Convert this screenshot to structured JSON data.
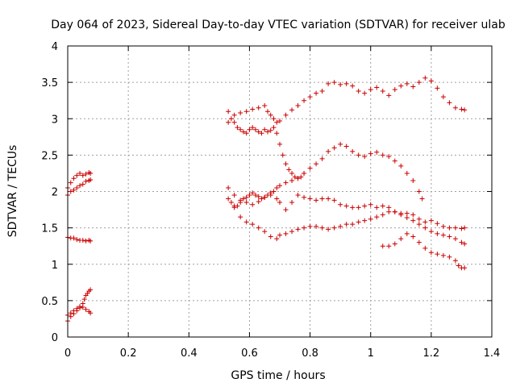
{
  "chart_data": {
    "type": "scatter",
    "title": "Day 064 of 2023, Sidereal Day-to-day VTEC variation (SDTVAR) for receiver ulab",
    "xlabel": "GPS time / hours",
    "ylabel": "SDTVAR / TECUs",
    "xlim": [
      0,
      1.4
    ],
    "ylim": [
      0,
      4
    ],
    "xticks": [
      "0",
      "0.2",
      "0.4",
      "0.6",
      "0.8",
      "1",
      "1.2",
      "1.4"
    ],
    "yticks": [
      "0",
      "0.5",
      "1",
      "1.5",
      "2",
      "2.5",
      "3",
      "3.5",
      "4"
    ],
    "grid": true,
    "marker": "+",
    "color": "#cc0000",
    "series": [
      {
        "name": "s1",
        "x": [
          0.0,
          0.01,
          0.02,
          0.03,
          0.04,
          0.05,
          0.06,
          0.07,
          0.075
        ],
        "y": [
          2.05,
          2.12,
          2.18,
          2.22,
          2.25,
          2.22,
          2.24,
          2.26,
          2.25
        ]
      },
      {
        "name": "s2",
        "x": [
          0.0,
          0.01,
          0.02,
          0.03,
          0.04,
          0.05,
          0.06,
          0.07,
          0.075
        ],
        "y": [
          1.95,
          2.0,
          2.02,
          2.05,
          2.08,
          2.1,
          2.14,
          2.15,
          2.16
        ]
      },
      {
        "name": "s3",
        "x": [
          0.0,
          0.01,
          0.02,
          0.03,
          0.04,
          0.05,
          0.06,
          0.07,
          0.075
        ],
        "y": [
          1.37,
          1.36,
          1.36,
          1.34,
          1.33,
          1.33,
          1.32,
          1.33,
          1.32
        ]
      },
      {
        "name": "s4",
        "x": [
          0.0,
          0.01,
          0.02,
          0.03,
          0.04,
          0.05,
          0.055,
          0.06,
          0.065,
          0.07,
          0.075
        ],
        "y": [
          0.22,
          0.28,
          0.32,
          0.36,
          0.4,
          0.46,
          0.52,
          0.57,
          0.6,
          0.63,
          0.65
        ]
      },
      {
        "name": "s5",
        "x": [
          0.0,
          0.01,
          0.02,
          0.03,
          0.04,
          0.05,
          0.06,
          0.07,
          0.075
        ],
        "y": [
          0.3,
          0.33,
          0.36,
          0.39,
          0.42,
          0.41,
          0.38,
          0.35,
          0.33
        ]
      },
      {
        "name": "s6",
        "x": [
          0.53,
          0.55,
          0.57,
          0.59,
          0.61,
          0.63,
          0.65,
          0.66,
          0.67,
          0.68,
          0.69,
          0.7,
          0.72,
          0.74,
          0.76,
          0.78,
          0.8,
          0.82,
          0.84,
          0.86,
          0.88,
          0.9,
          0.92,
          0.94,
          0.96,
          0.98,
          1.0,
          1.02,
          1.04,
          1.06,
          1.08,
          1.1,
          1.12,
          1.14,
          1.16,
          1.18,
          1.2,
          1.22,
          1.24,
          1.26,
          1.28,
          1.3,
          1.31
        ],
        "y": [
          3.1,
          3.05,
          3.08,
          3.1,
          3.13,
          3.15,
          3.18,
          3.1,
          3.05,
          3.0,
          2.95,
          2.97,
          3.05,
          3.12,
          3.18,
          3.25,
          3.3,
          3.35,
          3.38,
          3.48,
          3.5,
          3.47,
          3.48,
          3.45,
          3.38,
          3.35,
          3.4,
          3.43,
          3.38,
          3.32,
          3.4,
          3.45,
          3.48,
          3.44,
          3.5,
          3.56,
          3.52,
          3.42,
          3.3,
          3.22,
          3.15,
          3.13,
          3.12
        ]
      },
      {
        "name": "s7",
        "x": [
          0.53,
          0.54,
          0.55,
          0.56,
          0.57,
          0.58,
          0.59,
          0.6,
          0.61,
          0.62,
          0.63,
          0.64,
          0.65,
          0.66,
          0.67,
          0.68,
          0.69,
          0.7,
          0.71,
          0.72,
          0.73,
          0.74,
          0.75,
          0.76,
          0.77,
          0.78
        ],
        "y": [
          2.95,
          3.0,
          2.95,
          2.88,
          2.85,
          2.82,
          2.8,
          2.85,
          2.88,
          2.85,
          2.82,
          2.8,
          2.85,
          2.82,
          2.84,
          2.88,
          2.8,
          2.65,
          2.5,
          2.38,
          2.3,
          2.25,
          2.2,
          2.18,
          2.2,
          2.25
        ]
      },
      {
        "name": "s8",
        "x": [
          0.53,
          0.54,
          0.55,
          0.56,
          0.57,
          0.58,
          0.59,
          0.6,
          0.61,
          0.62,
          0.63,
          0.64,
          0.65,
          0.66,
          0.67,
          0.68,
          0.69,
          0.7,
          0.72,
          0.74,
          0.76,
          0.78,
          0.8,
          0.82,
          0.84,
          0.86,
          0.88,
          0.9,
          0.92,
          0.94,
          0.96,
          0.98,
          1.0,
          1.02,
          1.04,
          1.06,
          1.08,
          1.1,
          1.12,
          1.14,
          1.16,
          1.17
        ],
        "y": [
          1.9,
          1.85,
          1.8,
          1.8,
          1.85,
          1.9,
          1.92,
          1.95,
          1.98,
          1.95,
          1.93,
          1.9,
          1.92,
          1.95,
          1.98,
          2.0,
          2.05,
          2.08,
          2.12,
          2.15,
          2.18,
          2.25,
          2.32,
          2.38,
          2.45,
          2.55,
          2.6,
          2.65,
          2.62,
          2.55,
          2.5,
          2.48,
          2.52,
          2.54,
          2.5,
          2.48,
          2.42,
          2.35,
          2.25,
          2.15,
          2.0,
          1.9
        ]
      },
      {
        "name": "s9",
        "x": [
          0.53,
          0.55,
          0.57,
          0.59,
          0.61,
          0.63,
          0.65,
          0.67,
          0.69,
          0.7,
          0.72,
          0.74,
          0.76,
          0.78,
          0.8,
          0.82,
          0.84,
          0.86,
          0.88,
          0.9,
          0.92,
          0.94,
          0.96,
          0.98,
          1.0,
          1.02,
          1.04,
          1.06,
          1.08,
          1.1,
          1.12,
          1.14,
          1.16,
          1.18,
          1.2,
          1.22,
          1.24,
          1.26,
          1.28,
          1.3,
          1.31
        ],
        "y": [
          2.05,
          1.95,
          1.88,
          1.85,
          1.82,
          1.86,
          1.92,
          1.95,
          1.9,
          1.85,
          1.75,
          1.85,
          1.95,
          1.92,
          1.9,
          1.88,
          1.9,
          1.9,
          1.88,
          1.82,
          1.8,
          1.78,
          1.78,
          1.8,
          1.82,
          1.78,
          1.8,
          1.78,
          1.72,
          1.7,
          1.7,
          1.68,
          1.62,
          1.58,
          1.6,
          1.56,
          1.52,
          1.5,
          1.5,
          1.49,
          1.5
        ]
      },
      {
        "name": "s10",
        "x": [
          0.55,
          0.57,
          0.59,
          0.61,
          0.63,
          0.65,
          0.67,
          0.69,
          0.7,
          0.72,
          0.74,
          0.76,
          0.78,
          0.8,
          0.82,
          0.84,
          0.86,
          0.88,
          0.9,
          0.92,
          0.94,
          0.96,
          0.98,
          1.0,
          1.02,
          1.04,
          1.06,
          1.08,
          1.1,
          1.12,
          1.14,
          1.16,
          1.18,
          1.2,
          1.22,
          1.24,
          1.26,
          1.28,
          1.3,
          1.31
        ],
        "y": [
          1.78,
          1.65,
          1.58,
          1.55,
          1.5,
          1.45,
          1.38,
          1.35,
          1.4,
          1.42,
          1.45,
          1.48,
          1.5,
          1.52,
          1.52,
          1.5,
          1.48,
          1.5,
          1.52,
          1.55,
          1.55,
          1.58,
          1.6,
          1.62,
          1.65,
          1.68,
          1.72,
          1.72,
          1.68,
          1.64,
          1.6,
          1.55,
          1.5,
          1.45,
          1.42,
          1.4,
          1.38,
          1.35,
          1.3,
          1.28
        ]
      },
      {
        "name": "s11",
        "x": [
          1.04,
          1.06,
          1.08,
          1.1,
          1.12,
          1.14,
          1.16,
          1.18,
          1.2,
          1.22,
          1.24,
          1.26,
          1.28,
          1.29,
          1.3,
          1.31
        ],
        "y": [
          1.25,
          1.25,
          1.28,
          1.35,
          1.42,
          1.38,
          1.3,
          1.22,
          1.16,
          1.14,
          1.12,
          1.1,
          1.05,
          0.98,
          0.95,
          0.95
        ]
      }
    ]
  }
}
